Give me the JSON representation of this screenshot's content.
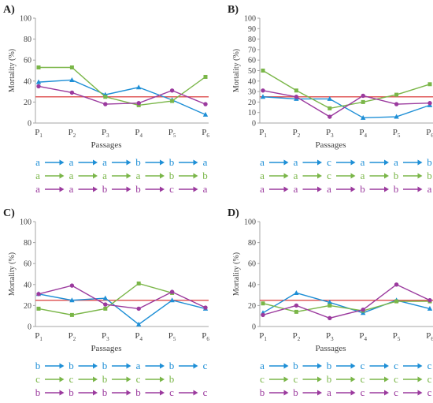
{
  "colors": {
    "blue": "#1e8fd6",
    "green": "#7ab648",
    "purple": "#9b3a9e",
    "threshold": "#e05a5a",
    "axis": "#a6a6a6",
    "text": "#404040"
  },
  "chart_data": [
    {
      "type": "line",
      "panel_label": "A)",
      "x": [
        "P1",
        "P2",
        "P3",
        "P4",
        "P5",
        "P6"
      ],
      "x_ticks": [
        {
          "main": "P",
          "sub": "1"
        },
        {
          "main": "P",
          "sub": "2"
        },
        {
          "main": "P",
          "sub": "3"
        },
        {
          "main": "P",
          "sub": "4"
        },
        {
          "main": "P",
          "sub": "5"
        },
        {
          "main": "P",
          "sub": "6"
        }
      ],
      "xlabel": "Passages",
      "ylabel": "Mortality (%)",
      "ylim": [
        0,
        100
      ],
      "yticks": [
        0,
        20,
        40,
        60,
        80,
        100
      ],
      "threshold": 25,
      "series": [
        {
          "color": "blue",
          "marker": "triangle",
          "values": [
            39,
            41,
            27,
            34,
            22,
            8
          ]
        },
        {
          "color": "green",
          "marker": "square",
          "values": [
            53,
            53,
            25,
            17,
            21,
            44
          ]
        },
        {
          "color": "purple",
          "marker": "circle",
          "values": [
            35,
            29,
            18,
            19,
            31,
            18
          ]
        }
      ],
      "letter_rows": [
        {
          "color": "blue",
          "letters": [
            "a",
            "a",
            "a",
            "b",
            "b",
            "a"
          ]
        },
        {
          "color": "green",
          "letters": [
            "a",
            "a",
            "a",
            "a",
            "b",
            "b"
          ]
        },
        {
          "color": "purple",
          "letters": [
            "a",
            "a",
            "b",
            "b",
            "c",
            "a"
          ]
        }
      ]
    },
    {
      "type": "line",
      "panel_label": "B)",
      "x": [
        "P1",
        "P2",
        "P3",
        "P4",
        "P5",
        "P6"
      ],
      "x_ticks": [
        {
          "main": "P",
          "sub": "1"
        },
        {
          "main": "P",
          "sub": "2"
        },
        {
          "main": "P",
          "sub": "3"
        },
        {
          "main": "P",
          "sub": "4"
        },
        {
          "main": "P",
          "sub": "5"
        },
        {
          "main": "P",
          "sub": "6"
        }
      ],
      "xlabel": "Passages",
      "ylabel": "Mortality (%)",
      "ylim": [
        0,
        100
      ],
      "yticks": [
        0,
        10,
        20,
        30,
        40,
        50,
        60,
        70,
        80,
        90,
        100
      ],
      "threshold": 25,
      "series": [
        {
          "color": "blue",
          "marker": "triangle",
          "values": [
            25,
            23,
            23,
            5,
            6,
            17
          ]
        },
        {
          "color": "green",
          "marker": "square",
          "values": [
            50,
            31,
            14,
            20,
            27,
            37
          ]
        },
        {
          "color": "purple",
          "marker": "circle",
          "values": [
            31,
            25,
            6,
            26,
            18,
            19
          ]
        }
      ],
      "letter_rows": [
        {
          "color": "blue",
          "letters": [
            "a",
            "a",
            "c",
            "a",
            "a",
            "b"
          ]
        },
        {
          "color": "green",
          "letters": [
            "a",
            "a",
            "c",
            "a",
            "b",
            "b"
          ]
        },
        {
          "color": "purple",
          "letters": [
            "a",
            "a",
            "a",
            "b",
            "b",
            "a"
          ]
        }
      ]
    },
    {
      "type": "line",
      "panel_label": "C)",
      "x": [
        "P1",
        "P2",
        "P3",
        "P4",
        "P5",
        "P6"
      ],
      "x_ticks": [
        {
          "main": "P",
          "sub": "1"
        },
        {
          "main": "P",
          "sub": "2"
        },
        {
          "main": "P",
          "sub": "3"
        },
        {
          "main": "P",
          "sub": "4"
        },
        {
          "main": "P",
          "sub": "5"
        },
        {
          "main": "P",
          "sub": "6"
        }
      ],
      "xlabel": "Passages",
      "ylabel": "Mortality (%)",
      "ylim": [
        0,
        100
      ],
      "yticks": [
        0,
        20,
        40,
        60,
        80,
        100
      ],
      "threshold": 25,
      "series": [
        {
          "color": "blue",
          "marker": "triangle",
          "values": [
            31,
            25,
            27,
            2,
            25,
            17
          ]
        },
        {
          "color": "green",
          "marker": "square",
          "values": [
            17,
            11,
            17,
            41,
            32,
            null
          ]
        },
        {
          "color": "purple",
          "marker": "circle",
          "values": [
            31,
            39,
            21,
            17,
            33,
            18
          ]
        }
      ],
      "letter_rows": [
        {
          "color": "blue",
          "letters": [
            "b",
            "b",
            "b",
            "a",
            "b",
            "c"
          ]
        },
        {
          "color": "green",
          "letters": [
            "c",
            "c",
            "b",
            "c",
            "b"
          ]
        },
        {
          "color": "purple",
          "letters": [
            "b",
            "b",
            "b",
            "b",
            "c",
            "c"
          ]
        }
      ]
    },
    {
      "type": "line",
      "panel_label": "D)",
      "x": [
        "P1",
        "P2",
        "P3",
        "P4",
        "P5",
        "P6"
      ],
      "x_ticks": [
        {
          "main": "P",
          "sub": "1"
        },
        {
          "main": "P",
          "sub": "2"
        },
        {
          "main": "P",
          "sub": "3"
        },
        {
          "main": "P",
          "sub": "4"
        },
        {
          "main": "P",
          "sub": "5"
        },
        {
          "main": "P",
          "sub": "6"
        }
      ],
      "xlabel": "Passages",
      "ylabel": "Mortality (%)",
      "ylim": [
        0,
        100
      ],
      "yticks": [
        0,
        20,
        40,
        60,
        80,
        100
      ],
      "threshold": 25,
      "series": [
        {
          "color": "blue",
          "marker": "triangle",
          "values": [
            13,
            32,
            23,
            13,
            25,
            17
          ]
        },
        {
          "color": "green",
          "marker": "square",
          "values": [
            22,
            14,
            20,
            15,
            24,
            24
          ]
        },
        {
          "color": "purple",
          "marker": "circle",
          "values": [
            11,
            20,
            8,
            16,
            40,
            25
          ]
        }
      ],
      "letter_rows": [
        {
          "color": "blue",
          "letters": [
            "a",
            "b",
            "b",
            "c",
            "c",
            "c"
          ]
        },
        {
          "color": "green",
          "letters": [
            "c",
            "c",
            "b",
            "c",
            "c",
            "c"
          ]
        },
        {
          "color": "purple",
          "letters": [
            "b",
            "b",
            "a",
            "c",
            "c",
            "c"
          ]
        }
      ]
    }
  ]
}
